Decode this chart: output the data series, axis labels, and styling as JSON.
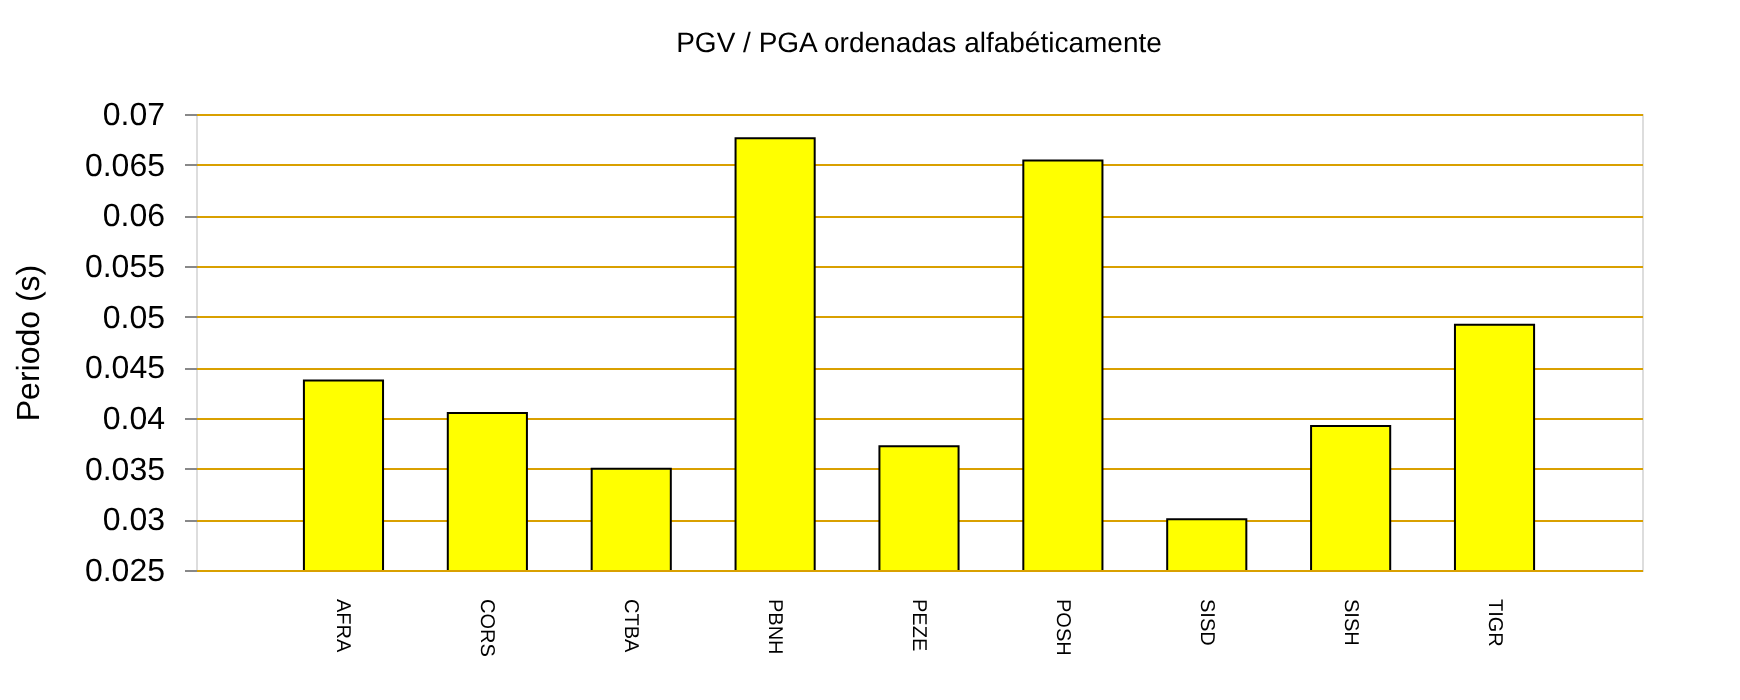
{
  "chart_data": {
    "type": "bar",
    "title": "PGV / PGA ordenadas alfabéticamente",
    "ylabel": "Periodo (s)",
    "categories": [
      "AFRA",
      "CORS",
      "CTBA",
      "PBNH",
      "PEZE",
      "POSH",
      "SISD",
      "SISH",
      "TIGR"
    ],
    "values": [
      0.0437,
      0.0405,
      0.035,
      0.0676,
      0.0372,
      0.0654,
      0.03,
      0.0392,
      0.0492
    ],
    "color": "#ffff00",
    "ylim": [
      0.025,
      0.07
    ],
    "yticks": [
      0.025,
      0.03,
      0.035,
      0.04,
      0.045,
      0.05,
      0.055,
      0.06,
      0.065,
      0.07
    ],
    "grid": "y"
  }
}
